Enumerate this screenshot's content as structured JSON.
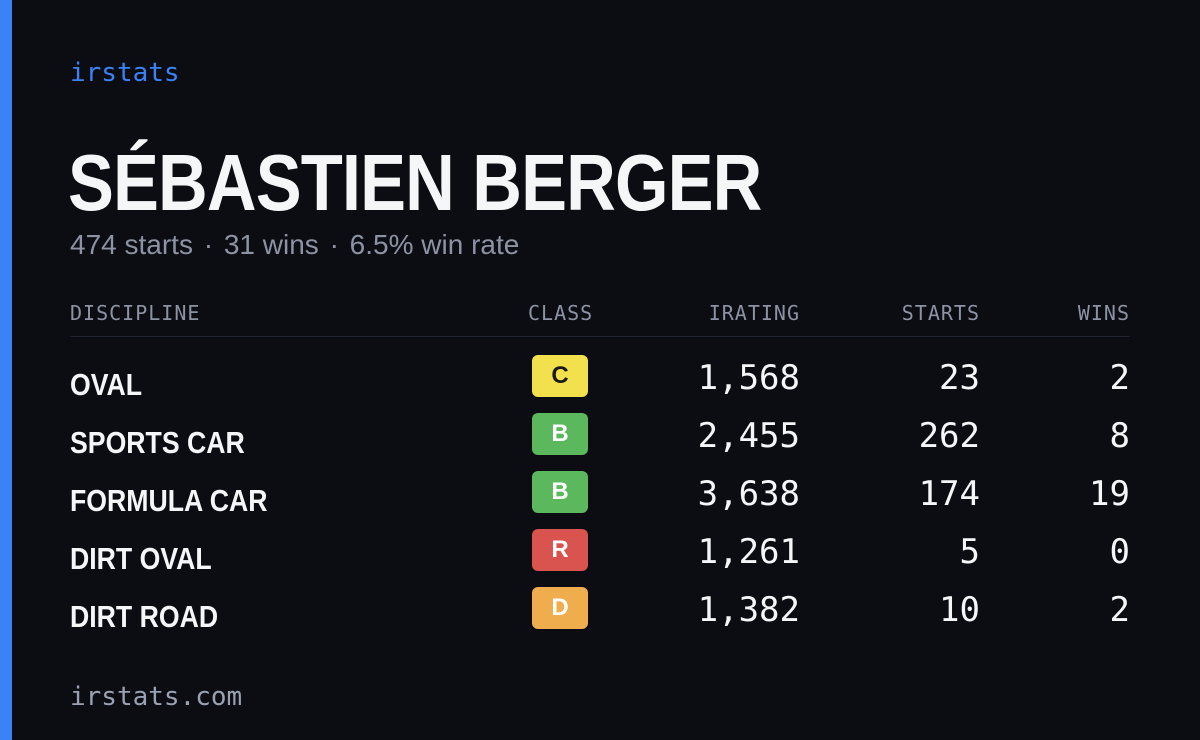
{
  "brand": "irstats",
  "player": {
    "name": "SÉBASTIEN BERGER",
    "starts_text": "474 starts",
    "wins_text": "31 wins",
    "winrate_text": "6.5% win rate",
    "separator": "·"
  },
  "table": {
    "headers": {
      "discipline": "DISCIPLINE",
      "class": "CLASS",
      "irating": "IRATING",
      "starts": "STARTS",
      "wins": "WINS"
    },
    "rows": [
      {
        "discipline": "OVAL",
        "class": "C",
        "class_color": "#f2e14c",
        "class_text_color": "#1a1a1a",
        "irating": "1,568",
        "starts": "23",
        "wins": "2"
      },
      {
        "discipline": "SPORTS CAR",
        "class": "B",
        "class_color": "#5cb85c",
        "class_text_color": "#ffffff",
        "irating": "2,455",
        "starts": "262",
        "wins": "8"
      },
      {
        "discipline": "FORMULA CAR",
        "class": "B",
        "class_color": "#5cb85c",
        "class_text_color": "#ffffff",
        "irating": "3,638",
        "starts": "174",
        "wins": "19"
      },
      {
        "discipline": "DIRT OVAL",
        "class": "R",
        "class_color": "#d9534f",
        "class_text_color": "#ffffff",
        "irating": "1,261",
        "starts": "5",
        "wins": "0"
      },
      {
        "discipline": "DIRT ROAD",
        "class": "D",
        "class_color": "#f0ad4e",
        "class_text_color": "#ffffff",
        "irating": "1,382",
        "starts": "10",
        "wins": "2"
      }
    ]
  },
  "footer": {
    "url": "irstats.com"
  },
  "colors": {
    "accent": "#3b82f6",
    "background": "#0b0d13"
  }
}
